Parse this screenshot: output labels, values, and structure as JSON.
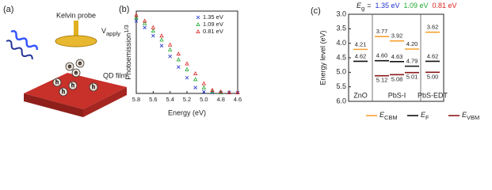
{
  "panel_a": {
    "label": "(a)",
    "probe_label": "Kelvin probe",
    "voltage": "V",
    "voltage_sub": "apply",
    "film_label": "QD film",
    "electron": "e",
    "hole": "h"
  },
  "chart_data": [
    {
      "type": "scatter",
      "panel_label": "(b)",
      "xlabel": "Energy (eV)",
      "ylabel": "Photoemission",
      "ylabel_sup": "1/3",
      "x": [
        5.8,
        5.7,
        5.6,
        5.5,
        5.4,
        5.3,
        5.2,
        5.1,
        5.0,
        4.9,
        4.8,
        4.7,
        4.6
      ],
      "series": [
        {
          "name": "1.35 eV",
          "color": "#2233cc",
          "marker": "x",
          "values": [
            0.88,
            0.8,
            0.7,
            0.58,
            0.45,
            0.32,
            0.19,
            0.07,
            0.02,
            0.01,
            0.01,
            0.01,
            0.01
          ]
        },
        {
          "name": "1.09 eV",
          "color": "#22aa33",
          "marker": "triangle",
          "values": [
            0.92,
            0.85,
            0.76,
            0.65,
            0.53,
            0.41,
            0.29,
            0.17,
            0.07,
            0.02,
            0.01,
            0.01,
            0.01
          ]
        },
        {
          "name": "0.81 eV",
          "color": "#dd2222",
          "marker": "triangle",
          "values": [
            0.95,
            0.88,
            0.8,
            0.7,
            0.59,
            0.48,
            0.36,
            0.24,
            0.12,
            0.04,
            0.02,
            0.01,
            0.01
          ]
        }
      ],
      "xlim": [
        5.8,
        4.6
      ],
      "xticks": [
        5.8,
        5.6,
        5.4,
        5.2,
        {
          "value": 5.0,
          "label": "5.0"
        },
        4.8,
        4.6
      ],
      "ylim": [
        0,
        1
      ],
      "legend": "upper-right"
    },
    {
      "type": "levels",
      "panel_label": "(c)",
      "ylabel": "Energy level (eV)",
      "eg_symbol": "E",
      "eg_sub": "g",
      "eg_equals": "=",
      "bandgaps": [
        {
          "label": "1.35 eV",
          "color": "#2233cc"
        },
        {
          "label": "1.09 eV",
          "color": "#22aa33"
        },
        {
          "label": "0.81 eV",
          "color": "#dd2222"
        }
      ],
      "categories": [
        "ZnO",
        null,
        "PbS-I",
        null,
        "PbS-EDT"
      ],
      "series": [
        {
          "name": "E",
          "name_sub": "CBM",
          "color": "#f5a030",
          "values": [
            4.21,
            3.77,
            3.92,
            4.2,
            3.62
          ],
          "value_labels": [
            "4.21",
            "3.77",
            "3.92",
            "4.20",
            "3.62"
          ]
        },
        {
          "name": "E",
          "name_sub": "F",
          "color": "#111111",
          "values": [
            4.62,
            4.6,
            4.63,
            4.79,
            4.62
          ],
          "value_labels": [
            "4.62",
            "4.60",
            "4.63",
            "4.79",
            "4.62"
          ]
        },
        {
          "name": "E",
          "name_sub": "VBM",
          "color": "#8b1a1a",
          "values": [
            null,
            5.12,
            5.08,
            5.01,
            5.0
          ],
          "value_labels": [
            null,
            "5.12",
            "5.08",
            "5.01",
            "5.00"
          ]
        }
      ],
      "ylim": [
        3.0,
        6.0
      ],
      "y_inverted": true,
      "yticks": [
        {
          "value": 3.0,
          "label": "3.0"
        },
        3.5,
        {
          "value": 4.0,
          "label": "4.0"
        },
        4.5,
        {
          "value": 5.0,
          "label": "5.0"
        },
        5.5,
        {
          "value": 6.0,
          "label": "6.0"
        }
      ]
    }
  ]
}
